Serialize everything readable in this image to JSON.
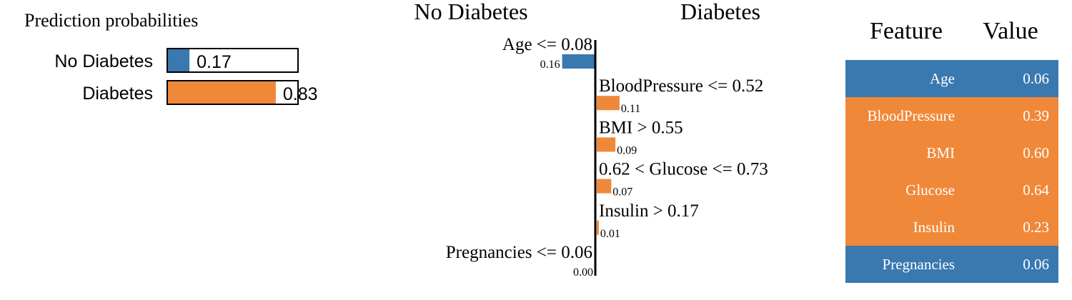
{
  "colors": {
    "negative": "#3a78b0",
    "positive": "#f0883a",
    "text": "#000000",
    "white": "#ffffff"
  },
  "chart_data": [
    {
      "type": "bar",
      "title": "Prediction probabilities",
      "categories": [
        "No Diabetes",
        "Diabetes"
      ],
      "values": [
        0.17,
        0.83
      ],
      "value_labels": [
        "0.17",
        "0.83"
      ],
      "xlim": [
        0,
        1
      ]
    },
    {
      "type": "bar",
      "orientation": "horizontal-diverging",
      "class_labels": {
        "negative": "No Diabetes",
        "positive": "Diabetes"
      },
      "features": [
        {
          "label": "Age <= 0.08",
          "weight": 0.16,
          "weight_label": "0.16",
          "side": "negative"
        },
        {
          "label": "BloodPressure <= 0.52",
          "weight": 0.11,
          "weight_label": "0.11",
          "side": "positive"
        },
        {
          "label": "BMI > 0.55",
          "weight": 0.09,
          "weight_label": "0.09",
          "side": "positive"
        },
        {
          "label": "0.62 < Glucose <= 0.73",
          "weight": 0.07,
          "weight_label": "0.07",
          "side": "positive"
        },
        {
          "label": "Insulin > 0.17",
          "weight": 0.01,
          "weight_label": "0.01",
          "side": "positive"
        },
        {
          "label": "Pregnancies <= 0.06",
          "weight": 0.0,
          "weight_label": "0.00",
          "side": "negative"
        }
      ]
    },
    {
      "type": "table",
      "columns": [
        "Feature",
        "Value"
      ],
      "rows": [
        {
          "feature": "Age",
          "value": "0.06",
          "side": "negative"
        },
        {
          "feature": "BloodPressure",
          "value": "0.39",
          "side": "positive"
        },
        {
          "feature": "BMI",
          "value": "0.60",
          "side": "positive"
        },
        {
          "feature": "Glucose",
          "value": "0.64",
          "side": "positive"
        },
        {
          "feature": "Insulin",
          "value": "0.23",
          "side": "positive"
        },
        {
          "feature": "Pregnancies",
          "value": "0.06",
          "side": "negative"
        }
      ]
    }
  ]
}
